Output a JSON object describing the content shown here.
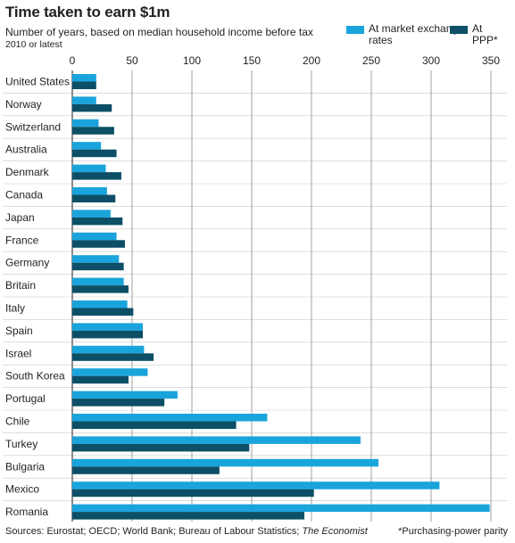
{
  "title": "Time taken to earn $1m",
  "subtitle": "Number of years, based on median household income before tax",
  "note": "2010 or latest",
  "legend": {
    "market": "At market exchange rates",
    "ppp": "At PPP*"
  },
  "colors": {
    "market": "#1aa4dc",
    "ppp": "#0c4f66",
    "grid": "#8a8a8a",
    "row_separator": "#c9c9c9"
  },
  "footer": {
    "sources": "Sources: Eurostat; OECD; World Bank; Bureau of Labour Statistics; ",
    "publication": "The Economist",
    "footnote": "*Purchasing-power parity"
  },
  "chart_data": {
    "type": "bar",
    "orientation": "horizontal",
    "categories": [
      "United States",
      "Norway",
      "Switzerland",
      "Australia",
      "Denmark",
      "Canada",
      "Japan",
      "France",
      "Germany",
      "Britain",
      "Italy",
      "Spain",
      "Israel",
      "South Korea",
      "Portugal",
      "Chile",
      "Turkey",
      "Bulgaria",
      "Mexico",
      "Romania"
    ],
    "series": [
      {
        "name": "At market exchange rates",
        "values": [
          20,
          20,
          22,
          24,
          28,
          29,
          32,
          37,
          39,
          43,
          46,
          59,
          60,
          63,
          88,
          163,
          241,
          256,
          307,
          349
        ]
      },
      {
        "name": "At PPP*",
        "values": [
          20,
          33,
          35,
          37,
          41,
          36,
          42,
          44,
          43,
          47,
          51,
          59,
          68,
          47,
          77,
          137,
          148,
          123,
          202,
          194
        ]
      }
    ],
    "xlim": [
      0,
      350
    ],
    "xticks": [
      0,
      50,
      100,
      150,
      200,
      250,
      300,
      350
    ],
    "xaxis_position": "top",
    "grid": true,
    "legend_position": "top-right"
  }
}
